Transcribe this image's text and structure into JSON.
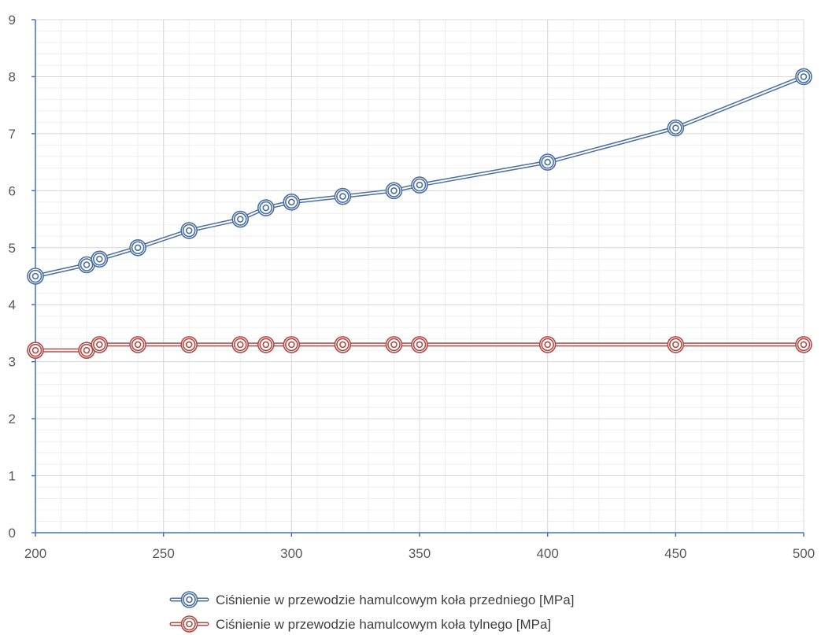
{
  "chart_data": {
    "type": "line",
    "title": "",
    "xlabel": "",
    "ylabel": "",
    "xlim": [
      200,
      500
    ],
    "ylim": [
      0,
      9
    ],
    "x_ticks": [
      200,
      250,
      300,
      350,
      400,
      450,
      500
    ],
    "y_ticks": [
      0,
      1,
      2,
      3,
      4,
      5,
      6,
      7,
      8,
      9
    ],
    "grid": true,
    "legend_position": "bottom",
    "series": [
      {
        "name": "Ciśnienie w przewodzie hamulcowym koła przedniego [MPa]",
        "color": "#4a6fa0",
        "x": [
          200,
          220,
          225,
          240,
          260,
          280,
          290,
          300,
          320,
          340,
          350,
          400,
          450,
          500
        ],
        "y": [
          4.5,
          4.7,
          4.8,
          5.0,
          5.3,
          5.5,
          5.7,
          5.8,
          5.9,
          6.0,
          6.1,
          6.5,
          7.1,
          8.0
        ]
      },
      {
        "name": "Ciśnienie w przewodzie hamulcowym koła tylnego [MPa]",
        "color": "#b24a45",
        "x": [
          200,
          220,
          225,
          240,
          260,
          280,
          290,
          300,
          320,
          340,
          350,
          400,
          450,
          500
        ],
        "y": [
          3.2,
          3.2,
          3.3,
          3.3,
          3.3,
          3.3,
          3.3,
          3.3,
          3.3,
          3.3,
          3.3,
          3.3,
          3.3,
          3.3
        ]
      }
    ]
  }
}
